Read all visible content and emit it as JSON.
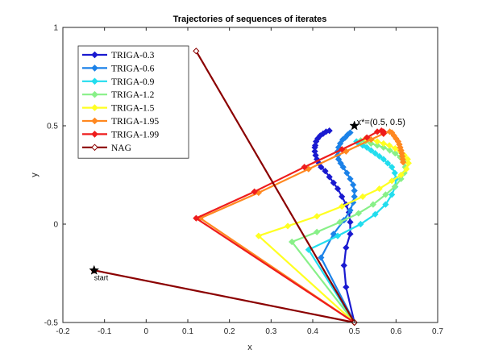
{
  "chart_data": {
    "type": "line",
    "title": "Trajectories of sequences of iterates",
    "xlabel": "x",
    "ylabel": "y",
    "xlim": [
      -0.2,
      0.7
    ],
    "ylim": [
      -0.5,
      1
    ],
    "xticks": [
      -0.2,
      -0.1,
      0,
      0.1,
      0.2,
      0.3,
      0.4,
      0.5,
      0.6,
      0.7
    ],
    "yticks": [
      -0.5,
      0,
      0.5,
      1
    ],
    "xtick_labels": [
      "-0.2",
      "-0.1",
      "0",
      "0.1",
      "0.2",
      "0.3",
      "0.4",
      "0.5",
      "0.6",
      "0.7"
    ],
    "ytick_labels": [
      "-0.5",
      "0",
      "0.5",
      "1"
    ],
    "grid": false,
    "legend_position": "top-left",
    "series": [
      {
        "name": "TRIGA-0.3",
        "color": "#1a1ad0",
        "points": [
          [
            0.5,
            -0.5
          ],
          [
            0.48,
            -0.32
          ],
          [
            0.475,
            -0.21
          ],
          [
            0.48,
            -0.12
          ],
          [
            0.49,
            -0.05
          ],
          [
            0.49,
            0.01
          ],
          [
            0.487,
            0.06
          ],
          [
            0.48,
            0.1
          ],
          [
            0.47,
            0.14
          ],
          [
            0.46,
            0.18
          ],
          [
            0.45,
            0.21
          ],
          [
            0.44,
            0.24
          ],
          [
            0.43,
            0.27
          ],
          [
            0.42,
            0.29
          ],
          [
            0.415,
            0.31
          ],
          [
            0.41,
            0.33
          ],
          [
            0.407,
            0.35
          ],
          [
            0.405,
            0.37
          ],
          [
            0.405,
            0.39
          ],
          [
            0.406,
            0.4
          ],
          [
            0.408,
            0.42
          ],
          [
            0.412,
            0.435
          ],
          [
            0.418,
            0.45
          ],
          [
            0.425,
            0.46
          ],
          [
            0.432,
            0.47
          ],
          [
            0.44,
            0.475
          ]
        ]
      },
      {
        "name": "TRIGA-0.6",
        "color": "#1c82e8",
        "points": [
          [
            0.5,
            -0.5
          ],
          [
            0.42,
            -0.17
          ],
          [
            0.45,
            -0.05
          ],
          [
            0.475,
            0.02
          ],
          [
            0.49,
            0.07
          ],
          [
            0.497,
            0.11
          ],
          [
            0.5,
            0.14
          ],
          [
            0.5,
            0.17
          ],
          [
            0.497,
            0.2
          ],
          [
            0.49,
            0.23
          ],
          [
            0.482,
            0.26
          ],
          [
            0.473,
            0.29
          ],
          [
            0.467,
            0.31
          ],
          [
            0.462,
            0.33
          ],
          [
            0.46,
            0.35
          ],
          [
            0.46,
            0.37
          ],
          [
            0.462,
            0.39
          ],
          [
            0.466,
            0.41
          ],
          [
            0.472,
            0.43
          ],
          [
            0.478,
            0.44
          ],
          [
            0.484,
            0.455
          ],
          [
            0.49,
            0.465
          ]
        ]
      },
      {
        "name": "TRIGA-0.9",
        "color": "#22ddee",
        "points": [
          [
            0.5,
            -0.5
          ],
          [
            0.39,
            -0.13
          ],
          [
            0.46,
            -0.06
          ],
          [
            0.515,
            0.0
          ],
          [
            0.55,
            0.05
          ],
          [
            0.575,
            0.1
          ],
          [
            0.59,
            0.15
          ],
          [
            0.598,
            0.19
          ],
          [
            0.6,
            0.23
          ],
          [
            0.597,
            0.26
          ],
          [
            0.59,
            0.29
          ],
          [
            0.58,
            0.31
          ],
          [
            0.57,
            0.33
          ],
          [
            0.56,
            0.345
          ],
          [
            0.55,
            0.36
          ],
          [
            0.54,
            0.375
          ],
          [
            0.53,
            0.39
          ],
          [
            0.52,
            0.4
          ],
          [
            0.51,
            0.41
          ],
          [
            0.505,
            0.42
          ]
        ]
      },
      {
        "name": "TRIGA-1.2",
        "color": "#88f088",
        "points": [
          [
            0.5,
            -0.5
          ],
          [
            0.35,
            -0.09
          ],
          [
            0.41,
            -0.04
          ],
          [
            0.465,
            0.01
          ],
          [
            0.51,
            0.055
          ],
          [
            0.545,
            0.1
          ],
          [
            0.575,
            0.15
          ],
          [
            0.597,
            0.19
          ],
          [
            0.612,
            0.23
          ],
          [
            0.62,
            0.26
          ],
          [
            0.622,
            0.29
          ],
          [
            0.618,
            0.32
          ],
          [
            0.61,
            0.34
          ],
          [
            0.598,
            0.36
          ],
          [
            0.585,
            0.375
          ],
          [
            0.57,
            0.39
          ],
          [
            0.555,
            0.4
          ],
          [
            0.54,
            0.41
          ],
          [
            0.527,
            0.42
          ],
          [
            0.515,
            0.425
          ]
        ]
      },
      {
        "name": "TRIGA-1.5",
        "color": "#ffff22",
        "points": [
          [
            0.5,
            -0.5
          ],
          [
            0.27,
            -0.06
          ],
          [
            0.34,
            -0.01
          ],
          [
            0.41,
            0.04
          ],
          [
            0.47,
            0.09
          ],
          [
            0.52,
            0.14
          ],
          [
            0.56,
            0.18
          ],
          [
            0.59,
            0.22
          ],
          [
            0.612,
            0.25
          ],
          [
            0.625,
            0.28
          ],
          [
            0.63,
            0.31
          ],
          [
            0.628,
            0.33
          ],
          [
            0.62,
            0.35
          ],
          [
            0.61,
            0.37
          ],
          [
            0.598,
            0.385
          ],
          [
            0.584,
            0.4
          ],
          [
            0.57,
            0.41
          ],
          [
            0.555,
            0.42
          ],
          [
            0.54,
            0.43
          ],
          [
            0.527,
            0.435
          ]
        ]
      },
      {
        "name": "TRIGA-1.95",
        "color": "#ff8820",
        "points": [
          [
            0.5,
            -0.5
          ],
          [
            0.13,
            0.03
          ],
          [
            0.27,
            0.16
          ],
          [
            0.39,
            0.28
          ],
          [
            0.48,
            0.37
          ],
          [
            0.54,
            0.43
          ],
          [
            0.57,
            0.46
          ],
          [
            0.585,
            0.47
          ],
          [
            0.59,
            0.465
          ],
          [
            0.595,
            0.45
          ],
          [
            0.6,
            0.435
          ],
          [
            0.605,
            0.42
          ],
          [
            0.608,
            0.405
          ],
          [
            0.61,
            0.39
          ],
          [
            0.612,
            0.375
          ],
          [
            0.614,
            0.36
          ],
          [
            0.615,
            0.345
          ],
          [
            0.616,
            0.33
          ],
          [
            0.617,
            0.315
          ]
        ]
      },
      {
        "name": "TRIGA-1.99",
        "color": "#ee1c1c",
        "points": [
          [
            0.5,
            -0.5
          ],
          [
            0.12,
            0.03
          ],
          [
            0.26,
            0.165
          ],
          [
            0.38,
            0.29
          ],
          [
            0.47,
            0.38
          ],
          [
            0.53,
            0.44
          ],
          [
            0.555,
            0.47
          ],
          [
            0.565,
            0.475
          ],
          [
            0.57,
            0.47
          ],
          [
            0.57,
            0.46
          ]
        ]
      },
      {
        "name": "NAG",
        "color": "#8b0000",
        "points": [
          [
            -0.125,
            -0.235
          ],
          [
            0.5,
            -0.5
          ],
          [
            0.12,
            0.88
          ]
        ]
      }
    ],
    "annotations": [
      {
        "text": "x*=(0.5, 0.5)",
        "x": 0.5,
        "y": 0.5
      },
      {
        "text": "start",
        "x": -0.125,
        "y": -0.235
      }
    ]
  }
}
